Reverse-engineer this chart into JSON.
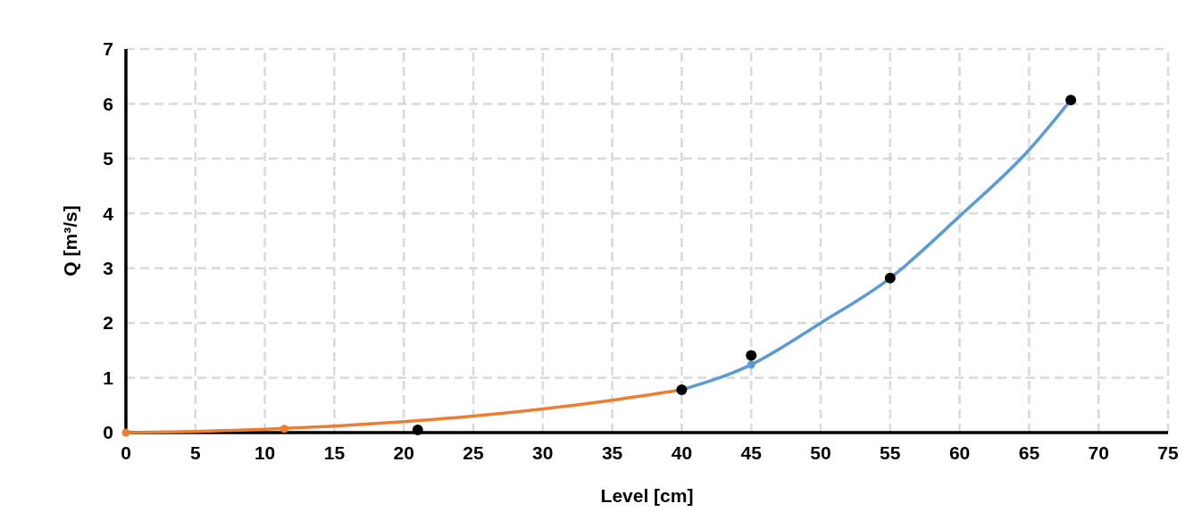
{
  "chart_data": {
    "type": "line",
    "xlabel": "Level [cm]",
    "ylabel": "Q [m³/s]",
    "xlim": [
      0,
      75
    ],
    "xticks": [
      0,
      5,
      10,
      15,
      20,
      25,
      30,
      35,
      40,
      45,
      50,
      55,
      60,
      65,
      70,
      75
    ],
    "ylim": [
      0,
      7
    ],
    "yticks": [
      0,
      1,
      2,
      3,
      4,
      5,
      6,
      7
    ],
    "grid": true,
    "series": [
      {
        "color": "#ed7d31",
        "x": [
          0,
          5,
          10,
          15,
          20,
          25,
          30,
          35,
          40
        ],
        "values": [
          0,
          0.02,
          0.06,
          0.12,
          0.2,
          0.3,
          0.43,
          0.59,
          0.78
        ]
      },
      {
        "color": "#5b9bd5",
        "x": [
          40,
          45,
          50,
          55,
          60,
          65,
          68
        ],
        "values": [
          0.78,
          1.24,
          2.0,
          2.82,
          3.95,
          5.16,
          6.07
        ]
      },
      {
        "type": "scatter",
        "color": "#ed7d31",
        "marker": "circle",
        "x": [
          0,
          11.4
        ],
        "values": [
          0,
          0.07
        ]
      },
      {
        "type": "scatter",
        "color": "#5b9bd5",
        "marker": "circle",
        "x": [
          45
        ],
        "values": [
          1.24
        ]
      },
      {
        "type": "scatter",
        "color": "#000000",
        "marker": "circle",
        "x": [
          21,
          40,
          45,
          55,
          68
        ],
        "values": [
          0.05,
          0.78,
          1.41,
          2.82,
          6.07
        ]
      }
    ]
  }
}
